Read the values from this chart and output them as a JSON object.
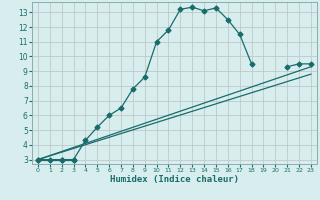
{
  "xlabel": "Humidex (Indice chaleur)",
  "bg_color": "#d8eeee",
  "grid_color": "#c0c8c8",
  "line_color": "#1a6b6b",
  "xlim": [
    -0.5,
    23.5
  ],
  "ylim": [
    2.7,
    13.7
  ],
  "yticks": [
    3,
    4,
    5,
    6,
    7,
    8,
    9,
    10,
    11,
    12,
    13
  ],
  "xticks": [
    0,
    1,
    2,
    3,
    4,
    5,
    6,
    7,
    8,
    9,
    10,
    11,
    12,
    13,
    14,
    15,
    16,
    17,
    18,
    19,
    20,
    21,
    22,
    23
  ],
  "curve1_x": [
    0,
    1,
    2,
    3,
    4,
    5,
    6,
    7,
    8,
    9,
    10,
    11,
    12,
    13,
    14,
    15,
    16,
    17,
    18
  ],
  "curve1_y": [
    3.0,
    3.0,
    3.0,
    3.0,
    4.3,
    5.2,
    6.0,
    6.5,
    7.8,
    8.6,
    11.0,
    11.8,
    13.2,
    13.35,
    13.1,
    13.3,
    12.5,
    11.5,
    9.5
  ],
  "curve2_x": [
    0,
    2,
    3,
    21,
    22,
    23
  ],
  "curve2_y": [
    3.0,
    3.0,
    3.0,
    9.3,
    9.5,
    9.5
  ],
  "line3_x": [
    0,
    23
  ],
  "line3_y": [
    3.0,
    9.3
  ],
  "line4_x": [
    0,
    23
  ],
  "line4_y": [
    3.0,
    8.8
  ]
}
